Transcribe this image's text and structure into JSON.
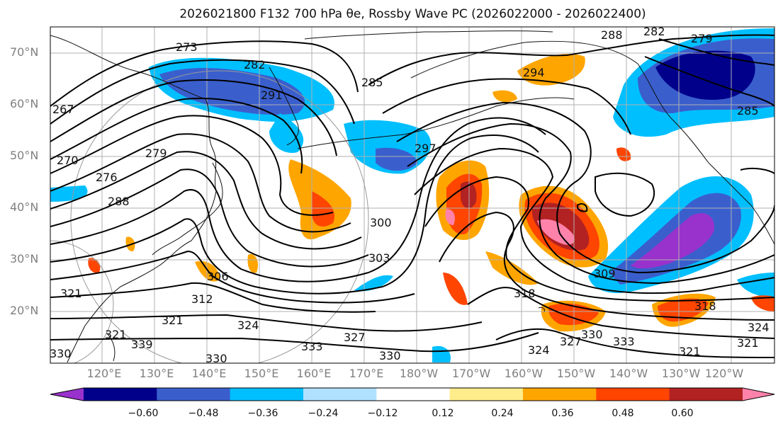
{
  "title": "2026021800 F132 700 hPa θe, Rossby Wave PC (2026022000 - 2026022400)",
  "lat_labels": [
    "70°N",
    "60°N",
    "50°N",
    "40°N",
    "30°N",
    "20°N"
  ],
  "lon_labels": [
    "120°E",
    "130°E",
    "140°E",
    "150°E",
    "160°E",
    "170°E",
    "180°W",
    "170°W",
    "160°W",
    "150°W",
    "140°W",
    "130°W",
    "120°W"
  ],
  "colorbar": {
    "ticks": [
      "−0.60",
      "−0.48",
      "−0.36",
      "−0.24",
      "−0.12",
      "0.12",
      "0.24",
      "0.36",
      "0.48",
      "0.60"
    ],
    "colors": [
      "#9932cc",
      "#00008b",
      "#3a5fcd",
      "#00bfff",
      "#b0e2ff",
      "#ffffff",
      "#ffec8b",
      "#ffa500",
      "#ff4500",
      "#b22222",
      "#ff82ab"
    ]
  },
  "contour_labels": [
    "273",
    "282",
    "288",
    "282",
    "279",
    "285",
    "294",
    "291",
    "267",
    "297",
    "285",
    "279",
    "270",
    "276",
    "288",
    "300",
    "303",
    "306",
    "309",
    "312",
    "318",
    "318",
    "321",
    "324",
    "327",
    "324",
    "327",
    "330",
    "333",
    "333",
    "330",
    "321",
    "321",
    "321",
    "330",
    "339",
    "330",
    "324",
    "321"
  ]
}
